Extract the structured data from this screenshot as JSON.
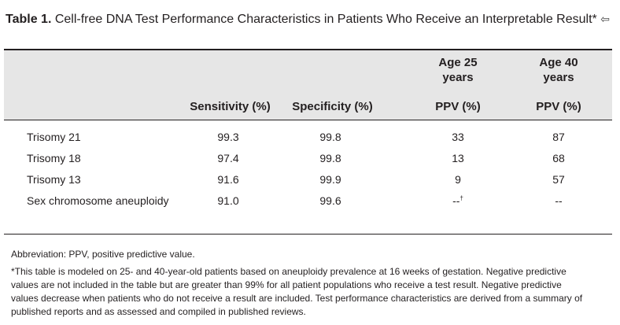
{
  "title": {
    "number": "Table 1.",
    "text": "Cell-free DNA Test Performance Characteristics in Patients Who Receive an Interpretable Result*",
    "arrow": "⇦"
  },
  "header": {
    "age25_top": "Age 25",
    "age25_bottom": "years",
    "age40_top": "Age 40",
    "age40_bottom": "years",
    "sensitivity": "Sensitivity (%)",
    "specificity": "Specificity (%)",
    "ppv25": "PPV (%)",
    "ppv40": "PPV (%)"
  },
  "rows": [
    {
      "condition": "Trisomy 21",
      "sensitivity": "99.3",
      "specificity": "99.8",
      "ppv25": "33",
      "ppv40": "87"
    },
    {
      "condition": "Trisomy 18",
      "sensitivity": "97.4",
      "specificity": "99.8",
      "ppv25": "13",
      "ppv40": "68"
    },
    {
      "condition": "Trisomy 13",
      "sensitivity": "91.6",
      "specificity": "99.9",
      "ppv25": "9",
      "ppv40": "57"
    },
    {
      "condition": "Sex chromosome aneuploidy",
      "sensitivity": "91.0",
      "specificity": "99.6",
      "ppv25": "--",
      "ppv25_sup": "†",
      "ppv40": "--"
    }
  ],
  "footnotes": {
    "abbreviation": "Abbreviation: PPV, positive predictive value.",
    "line1": "*This table is modeled on 25- and 40-year-old patients based on aneuploidy prevalence at 16 weeks of gestation. Negative predictive",
    "line2": "values are not included in the table but are greater than 99% for all patient populations who receive a test result. Negative predictive",
    "line3": "values decrease when patients who do not receive a result are included. Test performance characteristics are derived from a summary of",
    "line4": "published reports and as assessed and compiled in published reviews."
  }
}
